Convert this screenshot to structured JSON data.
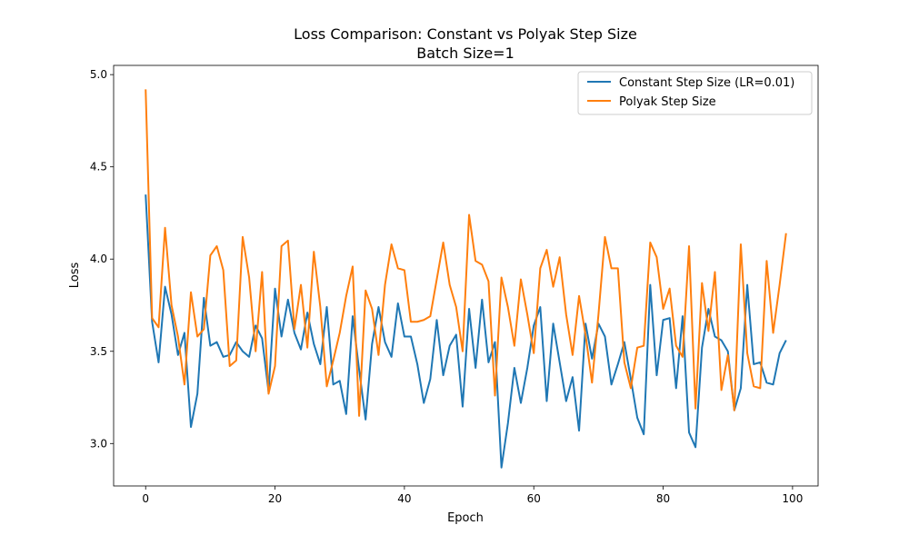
{
  "chart_data": {
    "type": "line",
    "title": "Loss Comparison: Constant vs Polyak Step Size",
    "subtitle": "Batch Size=1",
    "xlabel": "Epoch",
    "ylabel": "Loss",
    "xlim": [
      -4.95,
      103.95
    ],
    "ylim": [
      2.77,
      5.05
    ],
    "xticks": [
      0,
      20,
      40,
      60,
      80,
      100
    ],
    "yticks": [
      3.0,
      3.5,
      4.0,
      4.5,
      5.0
    ],
    "grid": false,
    "legend_position": "top-right",
    "series": [
      {
        "name": "Constant Step Size (LR=0.01)",
        "color": "#1f77b4",
        "values": [
          4.35,
          3.66,
          3.44,
          3.85,
          3.7,
          3.48,
          3.6,
          3.09,
          3.27,
          3.79,
          3.53,
          3.55,
          3.47,
          3.48,
          3.55,
          3.5,
          3.47,
          3.64,
          3.57,
          3.28,
          3.84,
          3.58,
          3.78,
          3.6,
          3.51,
          3.71,
          3.54,
          3.43,
          3.74,
          3.32,
          3.34,
          3.16,
          3.69,
          3.4,
          3.13,
          3.54,
          3.74,
          3.55,
          3.47,
          3.76,
          3.58,
          3.58,
          3.43,
          3.22,
          3.35,
          3.67,
          3.37,
          3.53,
          3.59,
          3.2,
          3.73,
          3.41,
          3.78,
          3.44,
          3.55,
          2.87,
          3.11,
          3.41,
          3.22,
          3.41,
          3.64,
          3.74,
          3.23,
          3.65,
          3.44,
          3.23,
          3.36,
          3.07,
          3.65,
          3.46,
          3.65,
          3.58,
          3.32,
          3.43,
          3.55,
          3.35,
          3.14,
          3.05,
          3.86,
          3.37,
          3.67,
          3.68,
          3.3,
          3.69,
          3.06,
          2.98,
          3.52,
          3.73,
          3.58,
          3.56,
          3.5,
          3.18,
          3.3,
          3.86,
          3.43,
          3.44,
          3.33,
          3.32,
          3.49,
          3.56
        ]
      },
      {
        "name": "Polyak Step Size",
        "color": "#ff7f0e",
        "values": [
          4.92,
          3.68,
          3.63,
          4.17,
          3.75,
          3.58,
          3.32,
          3.82,
          3.58,
          3.62,
          4.02,
          4.07,
          3.94,
          3.42,
          3.45,
          4.12,
          3.9,
          3.5,
          3.93,
          3.27,
          3.42,
          4.07,
          4.1,
          3.62,
          3.86,
          3.52,
          4.04,
          3.74,
          3.31,
          3.45,
          3.6,
          3.8,
          3.96,
          3.15,
          3.83,
          3.73,
          3.48,
          3.86,
          4.08,
          3.95,
          3.94,
          3.66,
          3.66,
          3.67,
          3.69,
          3.89,
          4.09,
          3.86,
          3.74,
          3.5,
          4.24,
          3.99,
          3.97,
          3.88,
          3.26,
          3.9,
          3.74,
          3.53,
          3.89,
          3.7,
          3.49,
          3.95,
          4.05,
          3.85,
          4.01,
          3.7,
          3.48,
          3.8,
          3.59,
          3.33,
          3.7,
          4.12,
          3.95,
          3.95,
          3.44,
          3.3,
          3.52,
          3.53,
          4.09,
          4.01,
          3.73,
          3.84,
          3.53,
          3.47,
          4.07,
          3.19,
          3.87,
          3.61,
          3.93,
          3.29,
          3.48,
          3.18,
          4.08,
          3.49,
          3.31,
          3.3,
          3.99,
          3.6,
          3.86,
          4.14
        ]
      }
    ]
  }
}
